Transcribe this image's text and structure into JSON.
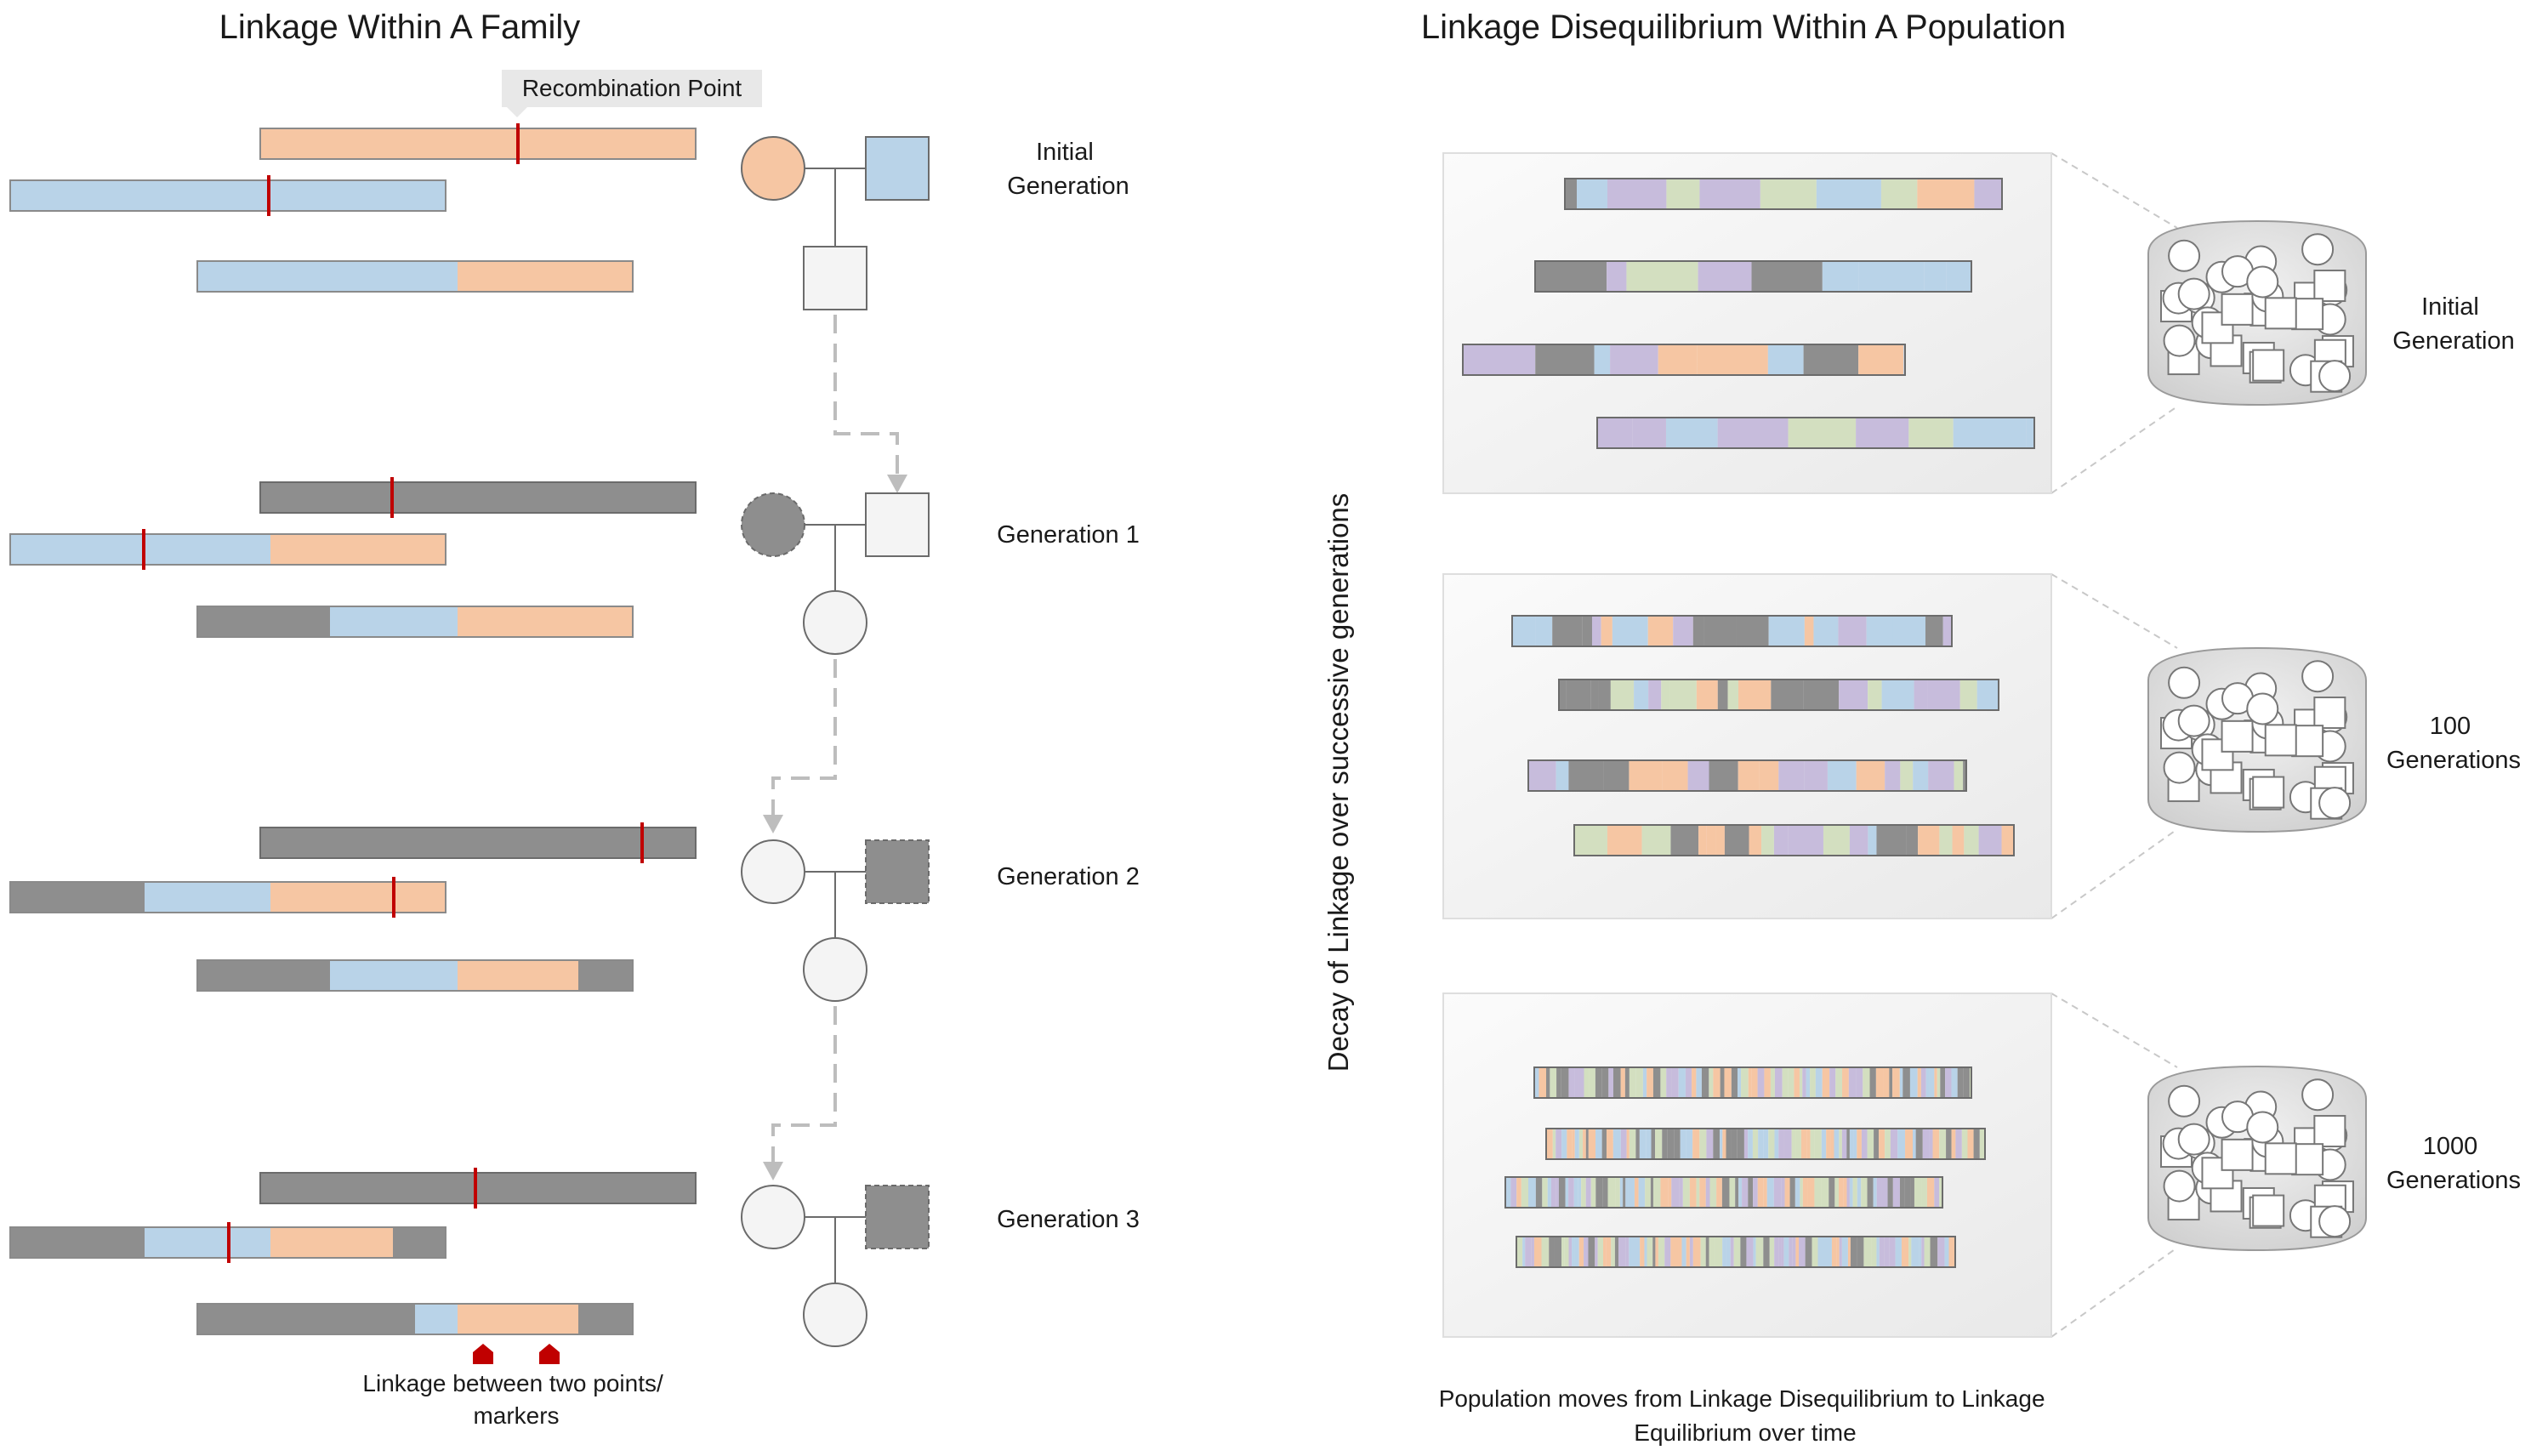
{
  "left": {
    "title": "Linkage Within A Family",
    "callout": "Recombination Point",
    "generations": [
      {
        "label": [
          "Initial",
          "Generation"
        ]
      },
      {
        "label": [
          "Generation 1"
        ]
      },
      {
        "label": [
          "Generation 2"
        ]
      },
      {
        "label": [
          "Generation 3"
        ]
      }
    ],
    "marker_caption": [
      "Linkage between two points/",
      "markers"
    ]
  },
  "right": {
    "title": "Linkage Disequilibrium Within A Population",
    "vertical_label": "Decay of Linkage over successive generations",
    "panels": [
      {
        "label": [
          "Initial",
          "Generation"
        ]
      },
      {
        "label": [
          "100",
          "Generations"
        ]
      },
      {
        "label": [
          "1000",
          "Generations"
        ]
      }
    ],
    "caption": [
      "Population moves from Linkage Disequilibrium to Linkage",
      "Equilibrium over time"
    ]
  },
  "colors": {
    "orange": "#f6c6a3",
    "blue": "#b9d3e8",
    "gray": "#8e8e8e",
    "purple": "#c7bcdc",
    "green": "#d3dfc0",
    "recombination_mark": "#c00000",
    "outline": "#6b6b6b"
  }
}
